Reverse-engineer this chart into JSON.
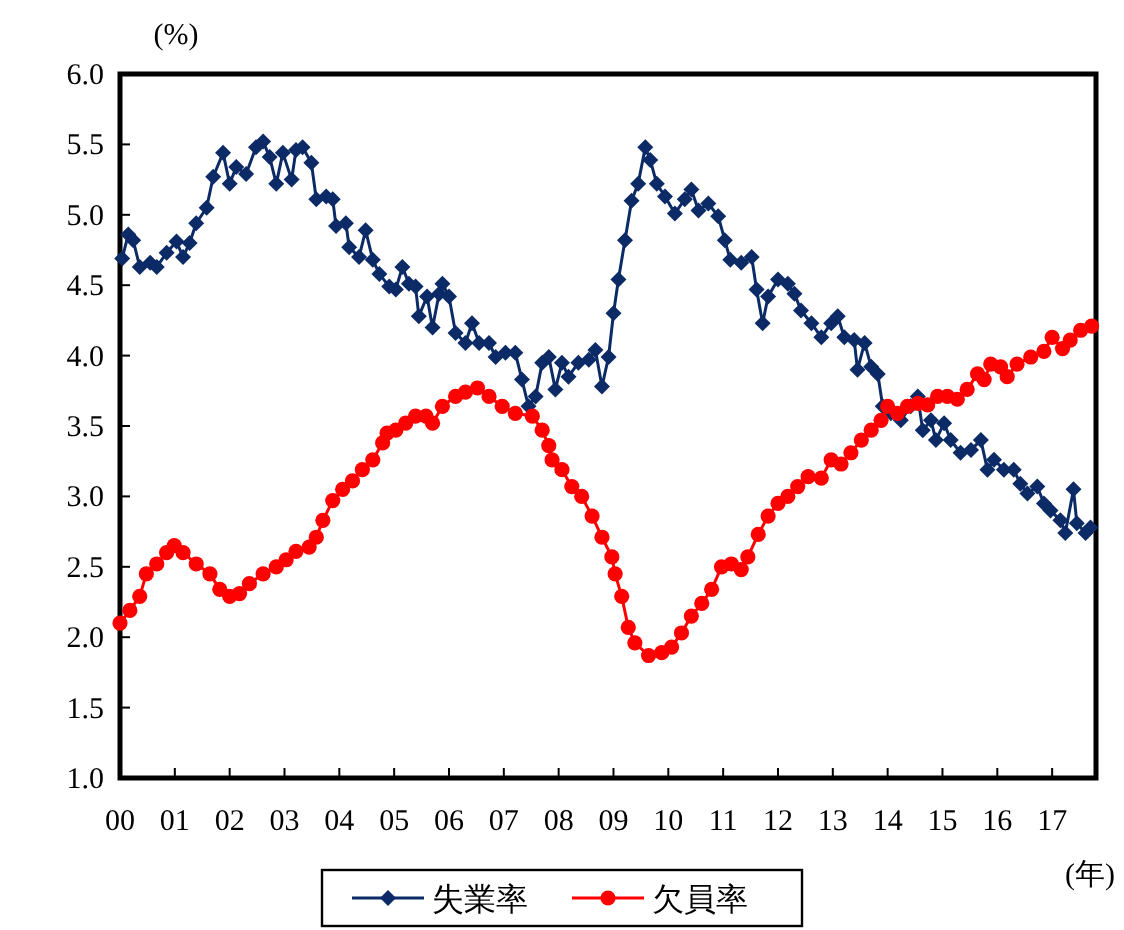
{
  "chart_data": {
    "type": "line",
    "ylabel": "(%)",
    "xlabel": "(年)",
    "xlim": [
      0,
      17.8
    ],
    "ylim": [
      1,
      6
    ],
    "xticks": [
      {
        "value": 0,
        "label": "00"
      },
      {
        "value": 1,
        "label": "01"
      },
      {
        "value": 2,
        "label": "02"
      },
      {
        "value": 3,
        "label": "03"
      },
      {
        "value": 4,
        "label": "04"
      },
      {
        "value": 5,
        "label": "05"
      },
      {
        "value": 6,
        "label": "06"
      },
      {
        "value": 7,
        "label": "07"
      },
      {
        "value": 8,
        "label": "08"
      },
      {
        "value": 9,
        "label": "09"
      },
      {
        "value": 10,
        "label": "10"
      },
      {
        "value": 11,
        "label": "11"
      },
      {
        "value": 12,
        "label": "12"
      },
      {
        "value": 13,
        "label": "13"
      },
      {
        "value": 14,
        "label": "14"
      },
      {
        "value": 15,
        "label": "15"
      },
      {
        "value": 16,
        "label": "16"
      },
      {
        "value": 17,
        "label": "17"
      }
    ],
    "yticks": [
      {
        "value": 1,
        "label": "1.0"
      },
      {
        "value": 1.5,
        "label": "1.5"
      },
      {
        "value": 2,
        "label": "2.0"
      },
      {
        "value": 2.5,
        "label": "2.5"
      },
      {
        "value": 3,
        "label": "3.0"
      },
      {
        "value": 3.5,
        "label": "3.5"
      },
      {
        "value": 4,
        "label": "4.0"
      },
      {
        "value": 4.5,
        "label": "4.5"
      },
      {
        "value": 5,
        "label": "5.0"
      },
      {
        "value": 5.5,
        "label": "5.5"
      },
      {
        "value": 6,
        "label": "6.0"
      }
    ],
    "grid": false,
    "legend": "bottom",
    "series": [
      {
        "name": "失業率",
        "color": "#0c2a66",
        "marker": "diamond",
        "x": [
          0.04,
          0.15,
          0.24,
          0.36,
          0.55,
          0.67,
          0.85,
          1.03,
          1.15,
          1.27,
          1.39,
          1.58,
          1.7,
          1.88,
          2.0,
          2.12,
          2.3,
          2.48,
          2.61,
          2.73,
          2.85,
          2.97,
          3.13,
          3.21,
          3.33,
          3.49,
          3.58,
          3.76,
          3.88,
          3.94,
          4.12,
          4.18,
          4.36,
          4.48,
          4.61,
          4.73,
          4.91,
          5.03,
          5.15,
          5.27,
          5.39,
          5.45,
          5.6,
          5.7,
          5.82,
          5.88,
          6.0,
          6.12,
          6.3,
          6.42,
          6.55,
          6.73,
          6.85,
          7.03,
          7.21,
          7.33,
          7.45,
          7.58,
          7.7,
          7.82,
          7.94,
          8.06,
          8.18,
          8.36,
          8.55,
          8.67,
          8.79,
          8.91,
          9.0,
          9.09,
          9.21,
          9.33,
          9.45,
          9.58,
          9.67,
          9.79,
          9.94,
          10.12,
          10.3,
          10.42,
          10.55,
          10.73,
          10.91,
          11.03,
          11.13,
          11.33,
          11.52,
          11.61,
          11.72,
          11.82,
          12.0,
          12.18,
          12.3,
          12.42,
          12.61,
          12.79,
          12.97,
          13.09,
          13.21,
          13.39,
          13.45,
          13.58,
          13.7,
          13.82,
          13.91,
          14.06,
          14.24,
          14.42,
          14.55,
          14.64,
          14.79,
          14.88,
          15.03,
          15.15,
          15.33,
          15.52,
          15.7,
          15.82,
          15.94,
          16.12,
          16.3,
          16.42,
          16.55,
          16.73,
          16.85,
          16.97,
          17.15,
          17.24,
          17.39,
          17.45,
          17.61,
          17.7
        ],
        "values": [
          4.69,
          4.86,
          4.82,
          4.63,
          4.66,
          4.63,
          4.73,
          4.81,
          4.7,
          4.8,
          4.94,
          5.05,
          5.27,
          5.44,
          5.22,
          5.34,
          5.29,
          5.48,
          5.52,
          5.41,
          5.22,
          5.44,
          5.25,
          5.46,
          5.48,
          5.37,
          5.11,
          5.13,
          5.11,
          4.92,
          4.94,
          4.77,
          4.7,
          4.89,
          4.68,
          4.58,
          4.49,
          4.47,
          4.63,
          4.51,
          4.49,
          4.28,
          4.42,
          4.2,
          4.44,
          4.51,
          4.42,
          4.16,
          4.09,
          4.23,
          4.09,
          4.09,
          3.99,
          4.02,
          4.02,
          3.83,
          3.64,
          3.71,
          3.95,
          3.99,
          3.76,
          3.95,
          3.85,
          3.95,
          3.97,
          4.04,
          3.78,
          3.99,
          4.3,
          4.54,
          4.82,
          5.1,
          5.22,
          5.48,
          5.39,
          5.22,
          5.13,
          5.01,
          5.11,
          5.18,
          5.03,
          5.08,
          4.99,
          4.82,
          4.68,
          4.66,
          4.7,
          4.47,
          4.23,
          4.42,
          4.54,
          4.51,
          4.44,
          4.32,
          4.23,
          4.13,
          4.23,
          4.28,
          4.13,
          4.11,
          3.9,
          4.09,
          3.92,
          3.87,
          3.64,
          3.59,
          3.54,
          3.64,
          3.71,
          3.47,
          3.54,
          3.4,
          3.52,
          3.4,
          3.31,
          3.33,
          3.4,
          3.19,
          3.26,
          3.19,
          3.19,
          3.09,
          3.02,
          3.07,
          2.95,
          2.9,
          2.83,
          2.74,
          3.05,
          2.81,
          2.74,
          2.78
        ]
      },
      {
        "name": "欠員率",
        "color": "#ff0000",
        "marker": "circle",
        "x": [
          0.0,
          0.18,
          0.36,
          0.48,
          0.67,
          0.85,
          0.99,
          1.15,
          1.39,
          1.64,
          1.82,
          2.0,
          2.18,
          2.36,
          2.61,
          2.85,
          3.03,
          3.21,
          3.45,
          3.58,
          3.7,
          3.88,
          4.06,
          4.24,
          4.42,
          4.61,
          4.79,
          4.87,
          5.03,
          5.21,
          5.39,
          5.58,
          5.7,
          5.88,
          6.12,
          6.3,
          6.52,
          6.73,
          6.97,
          7.21,
          7.52,
          7.7,
          7.82,
          7.88,
          8.06,
          8.24,
          8.42,
          8.61,
          8.79,
          8.97,
          9.03,
          9.15,
          9.27,
          9.39,
          9.64,
          9.88,
          10.06,
          10.24,
          10.42,
          10.61,
          10.79,
          10.97,
          11.15,
          11.33,
          11.45,
          11.64,
          11.82,
          12.0,
          12.18,
          12.36,
          12.55,
          12.79,
          12.97,
          13.15,
          13.33,
          13.52,
          13.7,
          13.88,
          14.0,
          14.18,
          14.36,
          14.55,
          14.73,
          14.91,
          15.09,
          15.27,
          15.45,
          15.64,
          15.76,
          15.88,
          16.06,
          16.18,
          16.36,
          16.61,
          16.85,
          17.0,
          17.19,
          17.33,
          17.52,
          17.72
        ],
        "values": [
          2.1,
          2.19,
          2.29,
          2.45,
          2.52,
          2.6,
          2.65,
          2.6,
          2.52,
          2.45,
          2.34,
          2.29,
          2.31,
          2.38,
          2.45,
          2.5,
          2.55,
          2.61,
          2.64,
          2.71,
          2.83,
          2.97,
          3.05,
          3.11,
          3.19,
          3.26,
          3.38,
          3.45,
          3.47,
          3.52,
          3.57,
          3.57,
          3.52,
          3.64,
          3.71,
          3.74,
          3.77,
          3.71,
          3.64,
          3.59,
          3.57,
          3.47,
          3.36,
          3.26,
          3.19,
          3.07,
          3.0,
          2.86,
          2.71,
          2.57,
          2.45,
          2.29,
          2.07,
          1.96,
          1.87,
          1.89,
          1.93,
          2.03,
          2.15,
          2.24,
          2.34,
          2.5,
          2.52,
          2.48,
          2.57,
          2.73,
          2.86,
          2.95,
          3.0,
          3.07,
          3.14,
          3.13,
          3.26,
          3.23,
          3.31,
          3.4,
          3.47,
          3.54,
          3.64,
          3.59,
          3.64,
          3.66,
          3.65,
          3.71,
          3.71,
          3.69,
          3.76,
          3.87,
          3.83,
          3.94,
          3.92,
          3.85,
          3.94,
          3.99,
          4.03,
          4.13,
          4.05,
          4.11,
          4.18,
          4.21
        ]
      }
    ]
  }
}
